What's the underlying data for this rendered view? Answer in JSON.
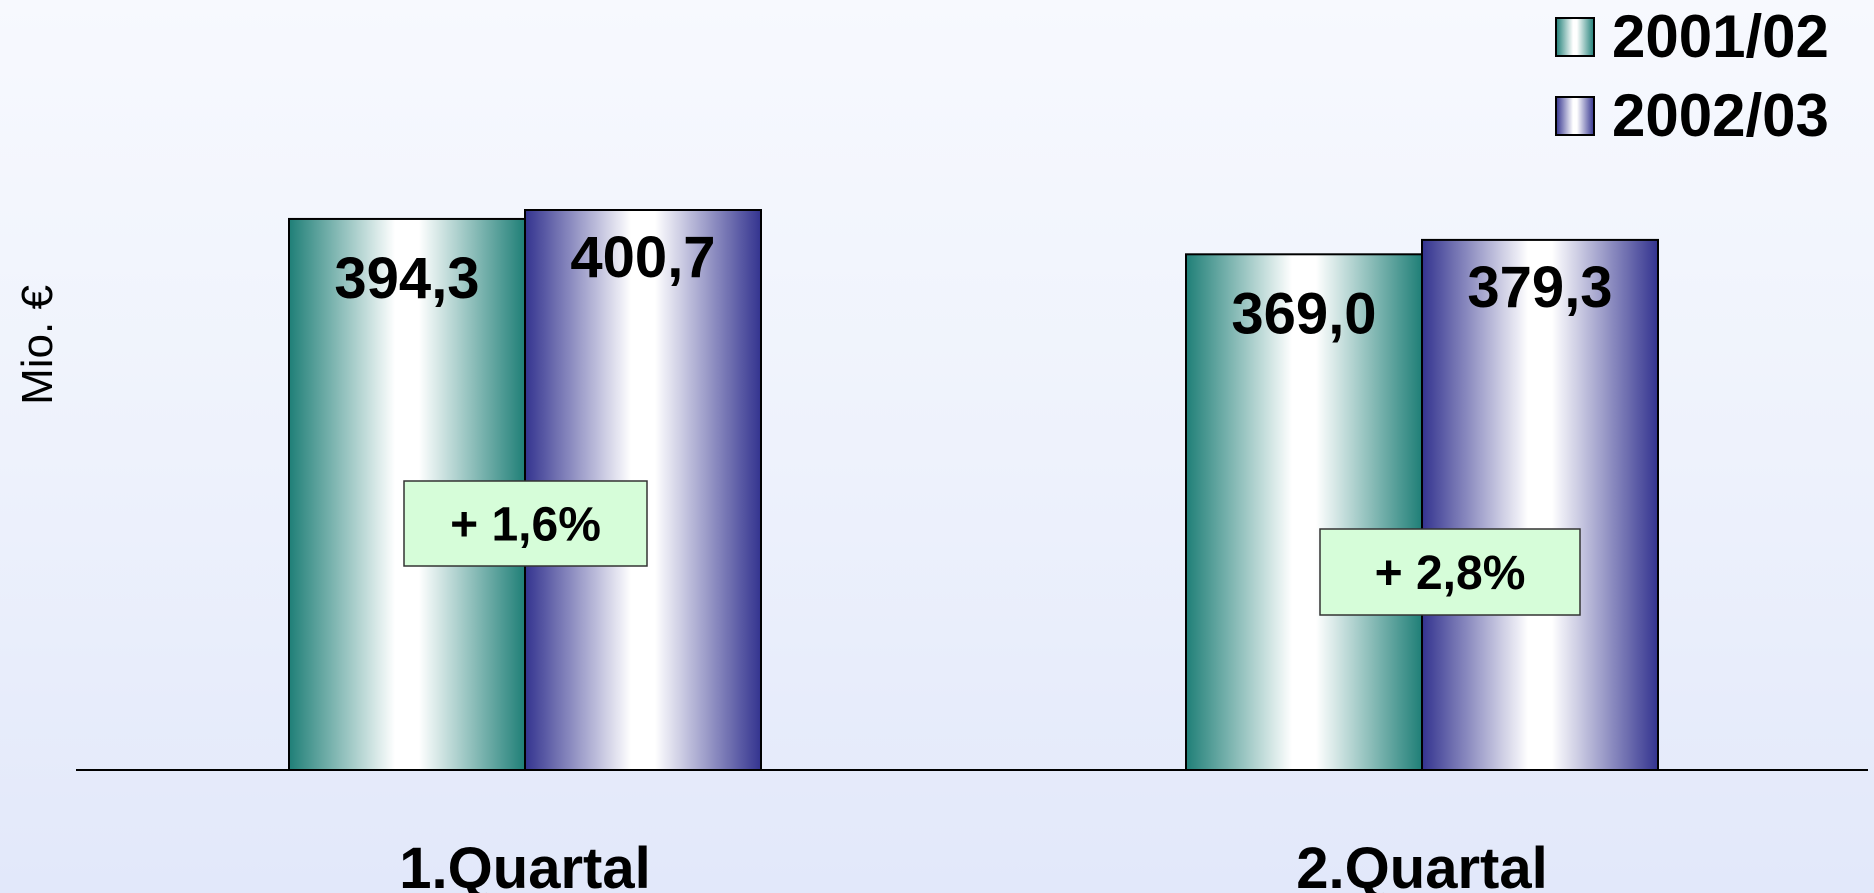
{
  "chart_data": {
    "type": "bar",
    "title": "",
    "ylabel": "Mio. €",
    "xlabel": "",
    "categories": [
      "1.Quartal",
      "2.Quartal"
    ],
    "series": [
      {
        "name": "2001/02",
        "values": [
          394.3,
          369.0
        ],
        "labels": [
          "394,3",
          "369,0"
        ],
        "color": "#2a8a82"
      },
      {
        "name": "2002/03",
        "values": [
          400.7,
          379.3
        ],
        "labels": [
          "400,7",
          "379,3"
        ],
        "color": "#3a3a94"
      }
    ],
    "changes": [
      "+ 1,6%",
      "+ 2,8%"
    ],
    "ylim": [
      0,
      400.7
    ],
    "grid": false,
    "legend": "top-right"
  }
}
